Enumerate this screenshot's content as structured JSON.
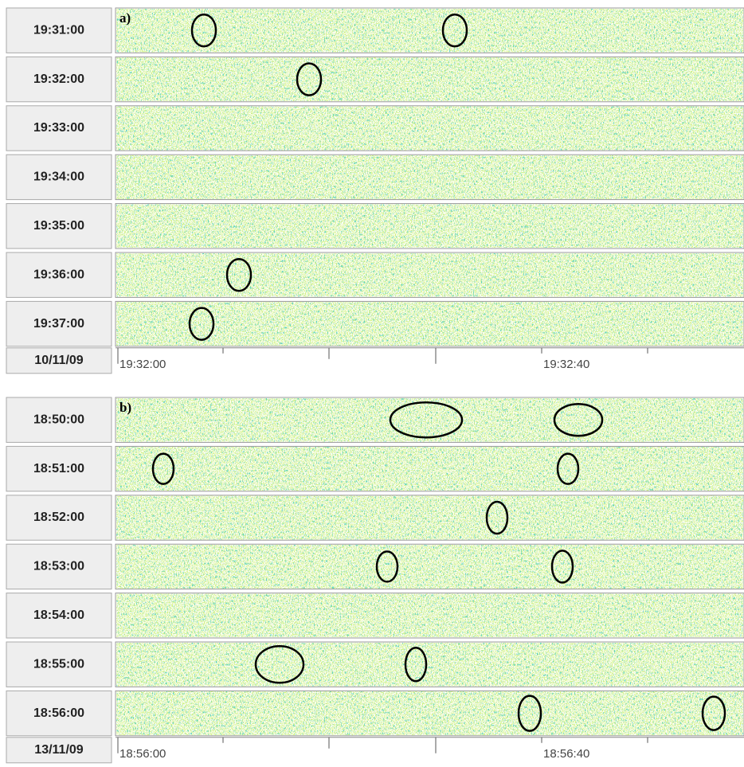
{
  "panels": [
    {
      "label": "a)",
      "rows": [
        "19:31:00",
        "19:32:00",
        "19:33:00",
        "19:34:00",
        "19:35:00",
        "19:36:00",
        "19:37:00"
      ],
      "date": "10/11/09",
      "axis_labels": [
        "19:32:00",
        "19:32:40"
      ]
    },
    {
      "label": "b)",
      "rows": [
        "18:50:00",
        "18:51:00",
        "18:52:00",
        "18:53:00",
        "18:54:00",
        "18:55:00",
        "18:56:00"
      ],
      "date": "13/11/09",
      "axis_labels": [
        "18:56:00",
        "18:56:40"
      ]
    }
  ]
}
